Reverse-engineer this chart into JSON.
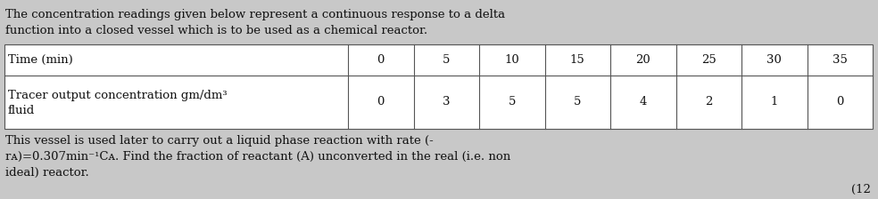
{
  "background_color": "#c8c8c8",
  "text_color": "#111111",
  "intro_line1": "The concentration readings given below represent a continuous response to a delta",
  "intro_line2": "function into a closed vessel which is to be used as a chemical reactor.",
  "table_row1_label": "Time (min)",
  "table_row1_values": [
    "0",
    "5",
    "10",
    "15",
    "20",
    "25",
    "30",
    "35"
  ],
  "table_row2_label_line1": "Tracer output concentration gm/dm³",
  "table_row2_label_line2": "fluid",
  "table_row2_values": [
    "0",
    "3",
    "5",
    "5",
    "4",
    "2",
    "1",
    "0"
  ],
  "footer_line1": "This vessel is used later to carry out a liquid phase reaction with rate (-",
  "footer_line2": "rᴀ)=0.307min⁻¹Cᴀ. Find the fraction of reactant (A) unconverted in the real (i.e. non",
  "footer_line3": "ideal) reactor.",
  "footer_mark": "(12",
  "font_size": 9.5,
  "font_size_small": 9.0
}
